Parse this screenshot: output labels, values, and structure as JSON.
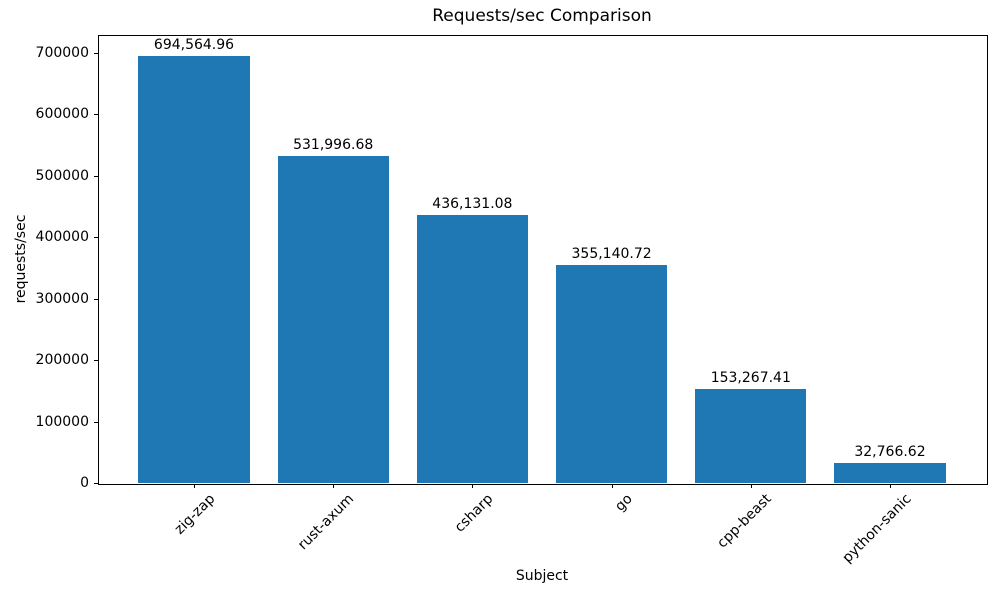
{
  "page": {
    "background_color": "#ffffff",
    "text_color": "#000000"
  },
  "chart_data": {
    "type": "bar",
    "title": "Requests/sec Comparison",
    "xlabel": "Subject",
    "ylabel": "requests/sec",
    "categories": [
      "zig-zap",
      "rust-axum",
      "csharp",
      "go",
      "cpp-beast",
      "python-sanic"
    ],
    "values": [
      694564.96,
      531996.68,
      436131.08,
      355140.72,
      153267.41,
      32766.62
    ],
    "value_labels": [
      "694,564.96",
      "531,996.68",
      "436,131.08",
      "355,140.72",
      "153,267.41",
      "32,766.62"
    ],
    "bar_color": "#1f77b4",
    "axis_color": "#000000",
    "ylim": [
      0,
      729293
    ],
    "yticks": [
      0,
      100000,
      200000,
      300000,
      400000,
      500000,
      600000,
      700000
    ],
    "ytick_labels": [
      "0",
      "100000",
      "200000",
      "300000",
      "400000",
      "500000",
      "600000",
      "700000"
    ],
    "bar_width_fraction": 0.8,
    "x_tick_rotation": 45,
    "grid": false,
    "legend": null
  }
}
